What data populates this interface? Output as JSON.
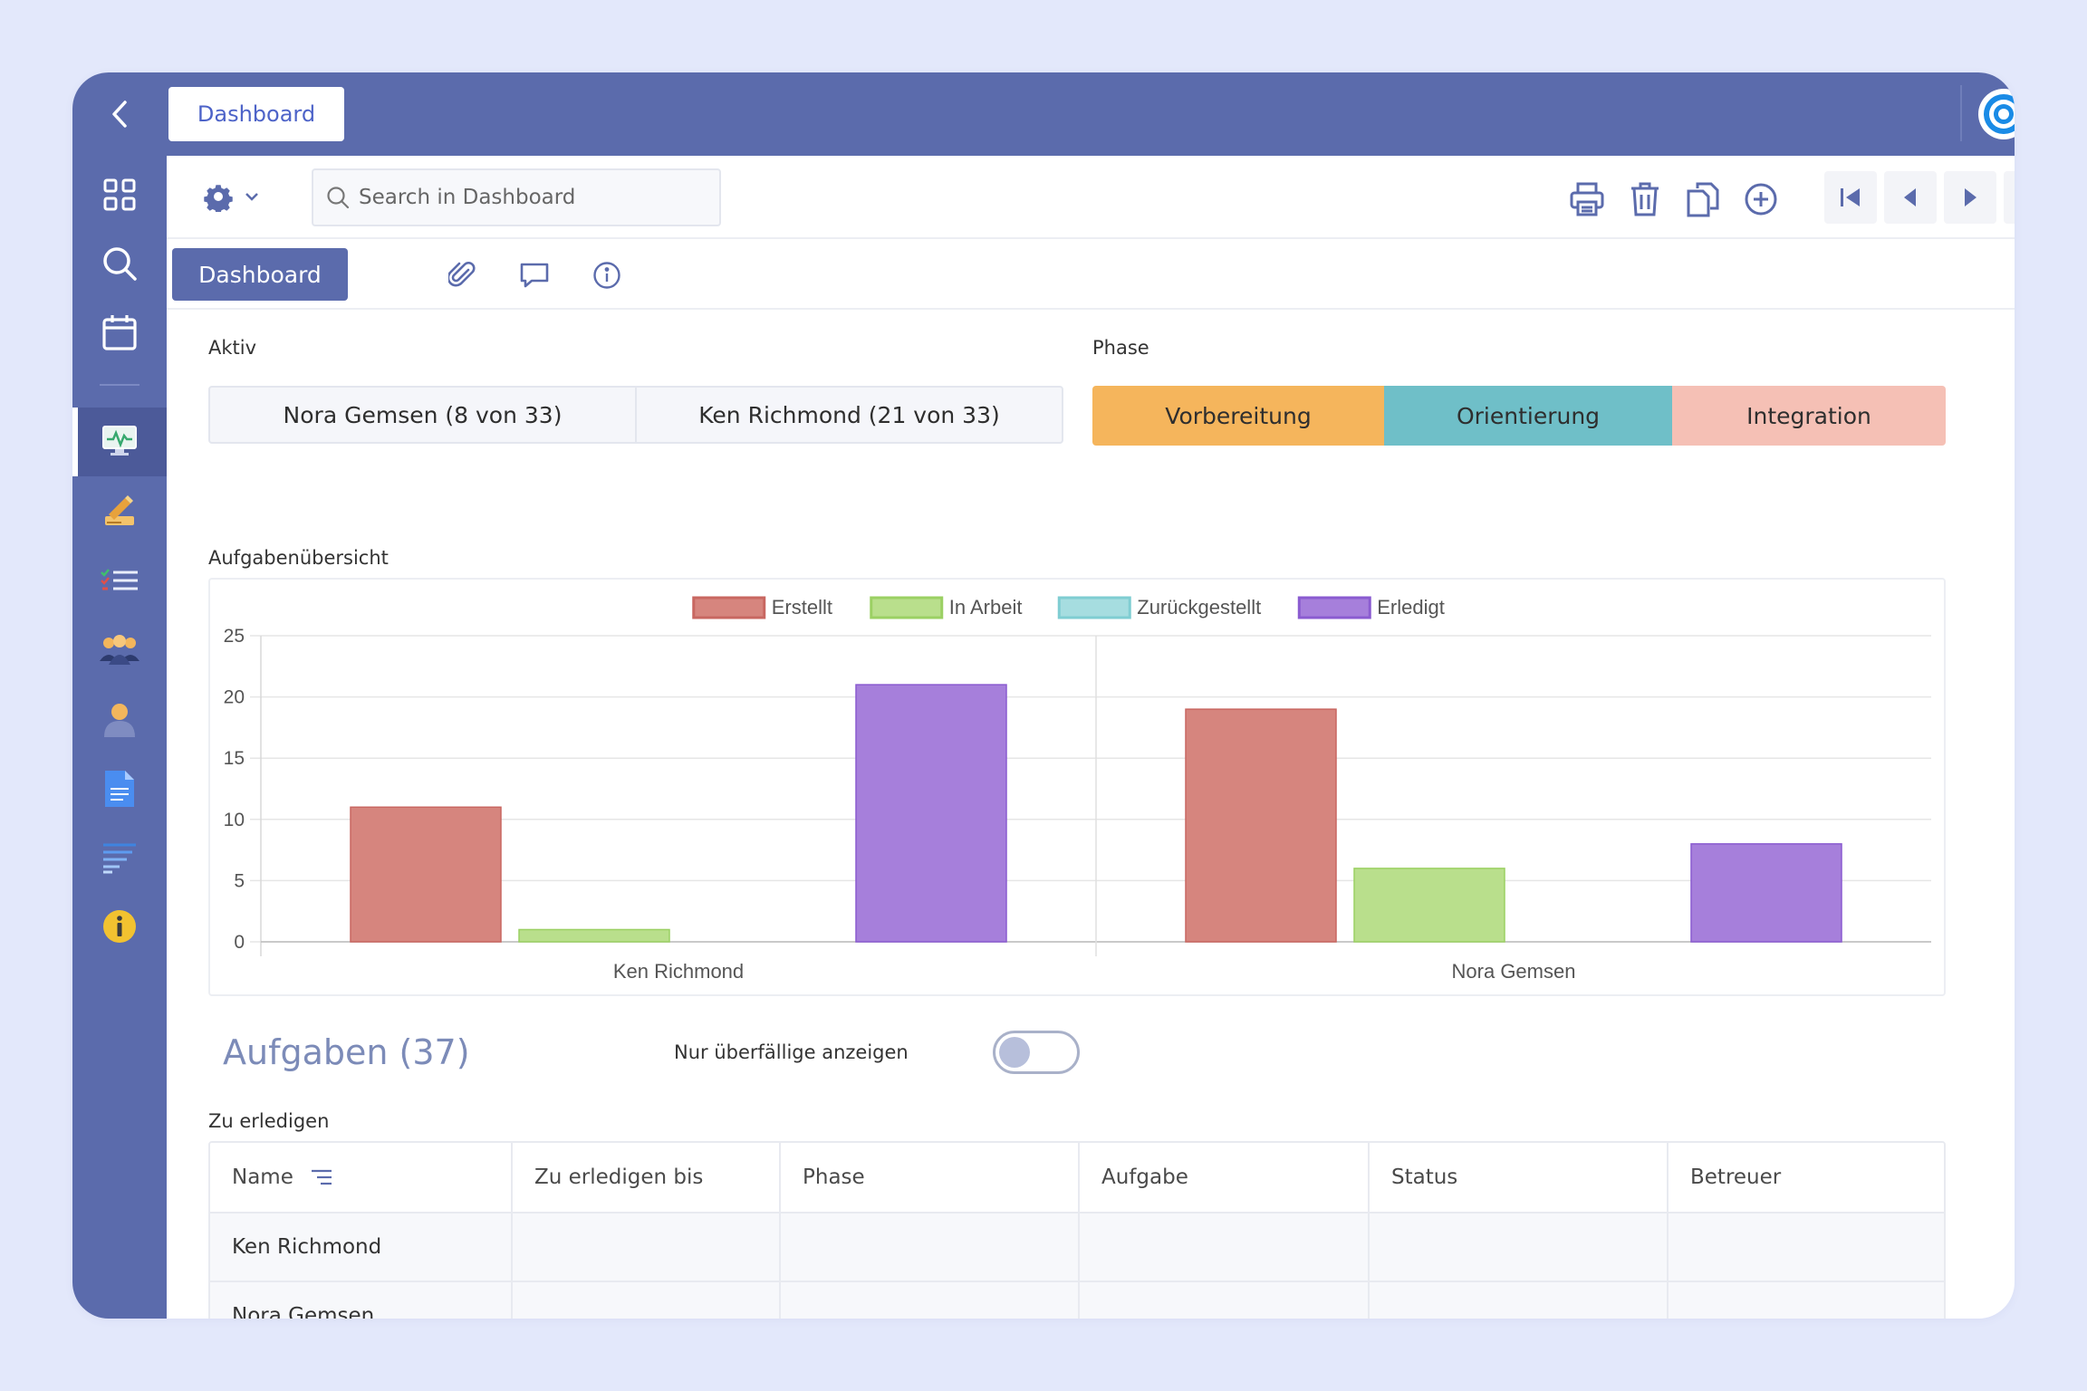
{
  "topbar": {
    "active_tab": "Dashboard",
    "back_icon": "chevron-left-icon",
    "logo_icon": "target-logo-icon"
  },
  "toolbar": {
    "search_placeholder": "Search in Dashboard",
    "actions": [
      "print-icon",
      "trash-icon",
      "copy-icon",
      "add-circle-icon"
    ],
    "navigation": [
      "first-page-icon",
      "previous-icon",
      "next-icon",
      "last-page-icon"
    ]
  },
  "subtabs": {
    "active": "Dashboard",
    "icons": [
      "paperclip-icon",
      "comment-icon",
      "info-icon"
    ]
  },
  "sidebar": {
    "items": [
      "grid-icon",
      "search-icon",
      "calendar-icon",
      "monitor-icon",
      "sign-icon",
      "checklist-icon",
      "team-icon",
      "user-icon",
      "document-icon",
      "list-icon",
      "info-circle-icon"
    ],
    "active_index": 3
  },
  "aktiv": {
    "label": "Aktiv",
    "items": [
      "Nora Gemsen (8 von 33)",
      "Ken Richmond (21 von 33)"
    ]
  },
  "phase": {
    "label": "Phase",
    "items": [
      {
        "label": "Vorbereitung",
        "color": "#f5b55c"
      },
      {
        "label": "Orientierung",
        "color": "#6fbfc8"
      },
      {
        "label": "Integration",
        "color": "#f5c0b5"
      }
    ]
  },
  "chart_section": {
    "label": "Aufgabenübersicht"
  },
  "chart_data": {
    "type": "bar",
    "categories": [
      "Ken Richmond",
      "Nora Gemsen"
    ],
    "series": [
      {
        "name": "Erstellt",
        "values": [
          11,
          19
        ],
        "color": "#d6857e",
        "border": "#c86761"
      },
      {
        "name": "In Arbeit",
        "values": [
          1,
          6
        ],
        "color": "#b9df8c",
        "border": "#9bd063"
      },
      {
        "name": "Zurückgestellt",
        "values": [
          0,
          0
        ],
        "color": "#a6dde0",
        "border": "#7fcdd2"
      },
      {
        "name": "Erledigt",
        "values": [
          21,
          8
        ],
        "color": "#a67fdb",
        "border": "#8a5bd0"
      }
    ],
    "yticks": [
      0,
      5,
      10,
      15,
      20,
      25
    ],
    "ylim": [
      0,
      25
    ],
    "legend": "top-center",
    "grid": true
  },
  "tasks": {
    "title": "Aufgaben (37)",
    "toggle_label": "Nur überfällige anzeigen",
    "toggle_on": false,
    "section_label": "Zu erledigen",
    "columns": [
      "Name",
      "Zu erledigen bis",
      "Phase",
      "Aufgabe",
      "Status",
      "Betreuer"
    ],
    "rows": [
      [
        "Ken Richmond",
        "",
        "",
        "",
        "",
        ""
      ],
      [
        "Nora Gemsen",
        "",
        "",
        "",
        "",
        ""
      ]
    ]
  }
}
